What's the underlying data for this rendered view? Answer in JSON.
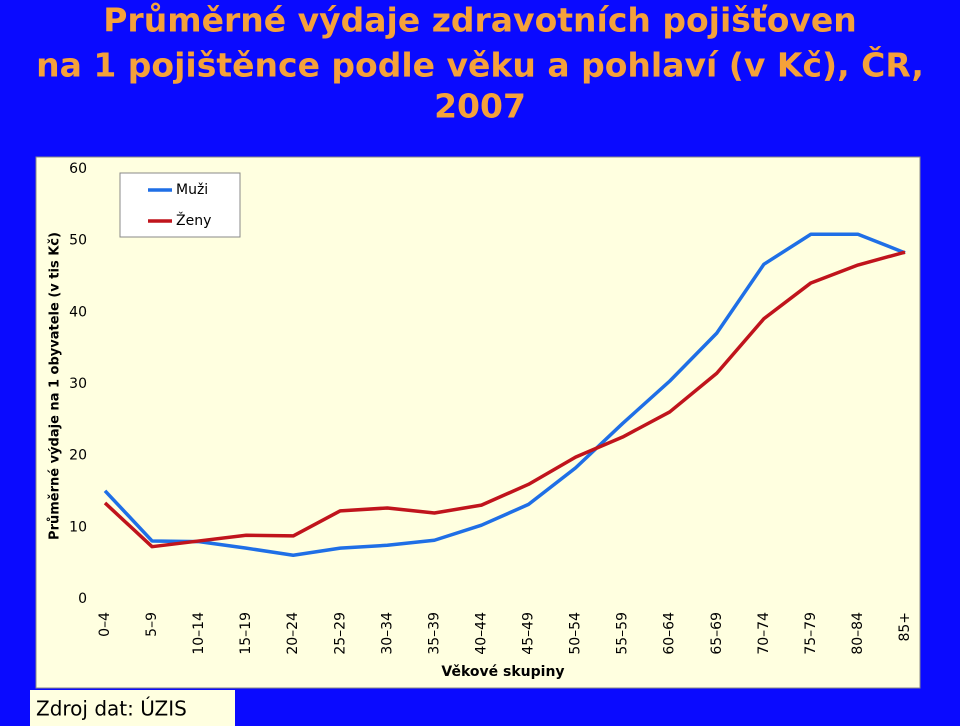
{
  "chart_data": {
    "type": "line",
    "title": [
      "Průměrné výdaje zdravotních pojišťoven",
      "na 1 pojištěnce podle věku a pohlaví (v Kč), ČR,",
      "2007"
    ],
    "y_label": "Průměrné výdaje na 1 obyvatele (v tis Kč)",
    "x_label": "Věkové skupiny",
    "source": "Zdroj dat: ÚZIS",
    "categories": [
      "0–4",
      "5–9",
      "10–14",
      "15–19",
      "20–24",
      "25–29",
      "30–34",
      "35–39",
      "40–44",
      "45–49",
      "50–54",
      "55–59",
      "60–64",
      "65–69",
      "70–74",
      "75–79",
      "80–84",
      "85+"
    ],
    "series": [
      {
        "name": "Muži",
        "color": "#1f6fe6",
        "values": [
          15.1,
          8.1,
          8.0,
          7.1,
          6.1,
          7.1,
          7.5,
          8.2,
          10.3,
          13.2,
          18.3,
          24.5,
          30.4,
          37.1,
          46.7,
          50.9,
          50.9,
          48.3
        ]
      },
      {
        "name": "Ženy",
        "color": "#c0141c",
        "values": [
          13.4,
          7.3,
          8.1,
          8.9,
          8.8,
          12.3,
          12.7,
          12.0,
          13.1,
          16.0,
          19.8,
          22.6,
          26.1,
          31.5,
          39.1,
          44.1,
          46.6,
          48.4
        ]
      }
    ],
    "ylim": [
      0,
      60
    ],
    "yticks": [
      0,
      10,
      20,
      30,
      40,
      50,
      60
    ],
    "grid": false,
    "legend": "top-left"
  }
}
